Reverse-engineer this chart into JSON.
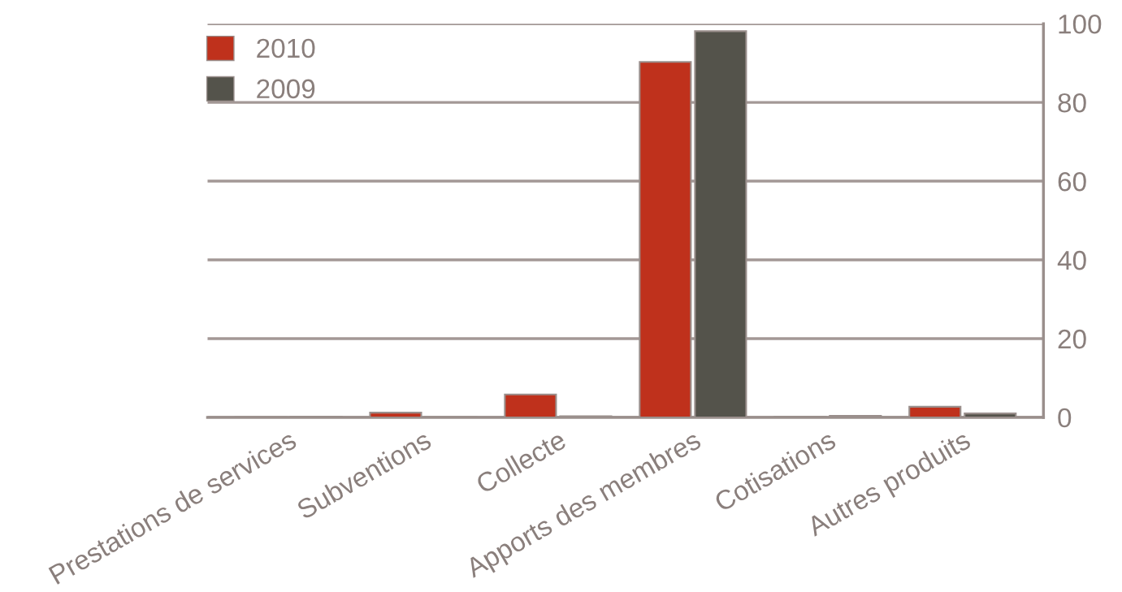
{
  "chart_data": {
    "type": "bar",
    "categories": [
      "Prestations de services",
      "Subventions",
      "Collecte",
      "Apports des membres",
      "Cotisations",
      "Autres produits"
    ],
    "series": [
      {
        "name": "2010",
        "color": "#bf311c",
        "values": [
          0.1,
          1.2,
          5.8,
          90.3,
          0.2,
          2.7
        ]
      },
      {
        "name": "2009",
        "color": "#54534b",
        "values": [
          0.2,
          0.1,
          0.3,
          98.1,
          0.4,
          1.0
        ]
      }
    ],
    "ylim": [
      0,
      100
    ],
    "yticks": [
      0,
      20,
      40,
      60,
      80,
      100
    ],
    "grid": "y",
    "legend": "top left"
  }
}
